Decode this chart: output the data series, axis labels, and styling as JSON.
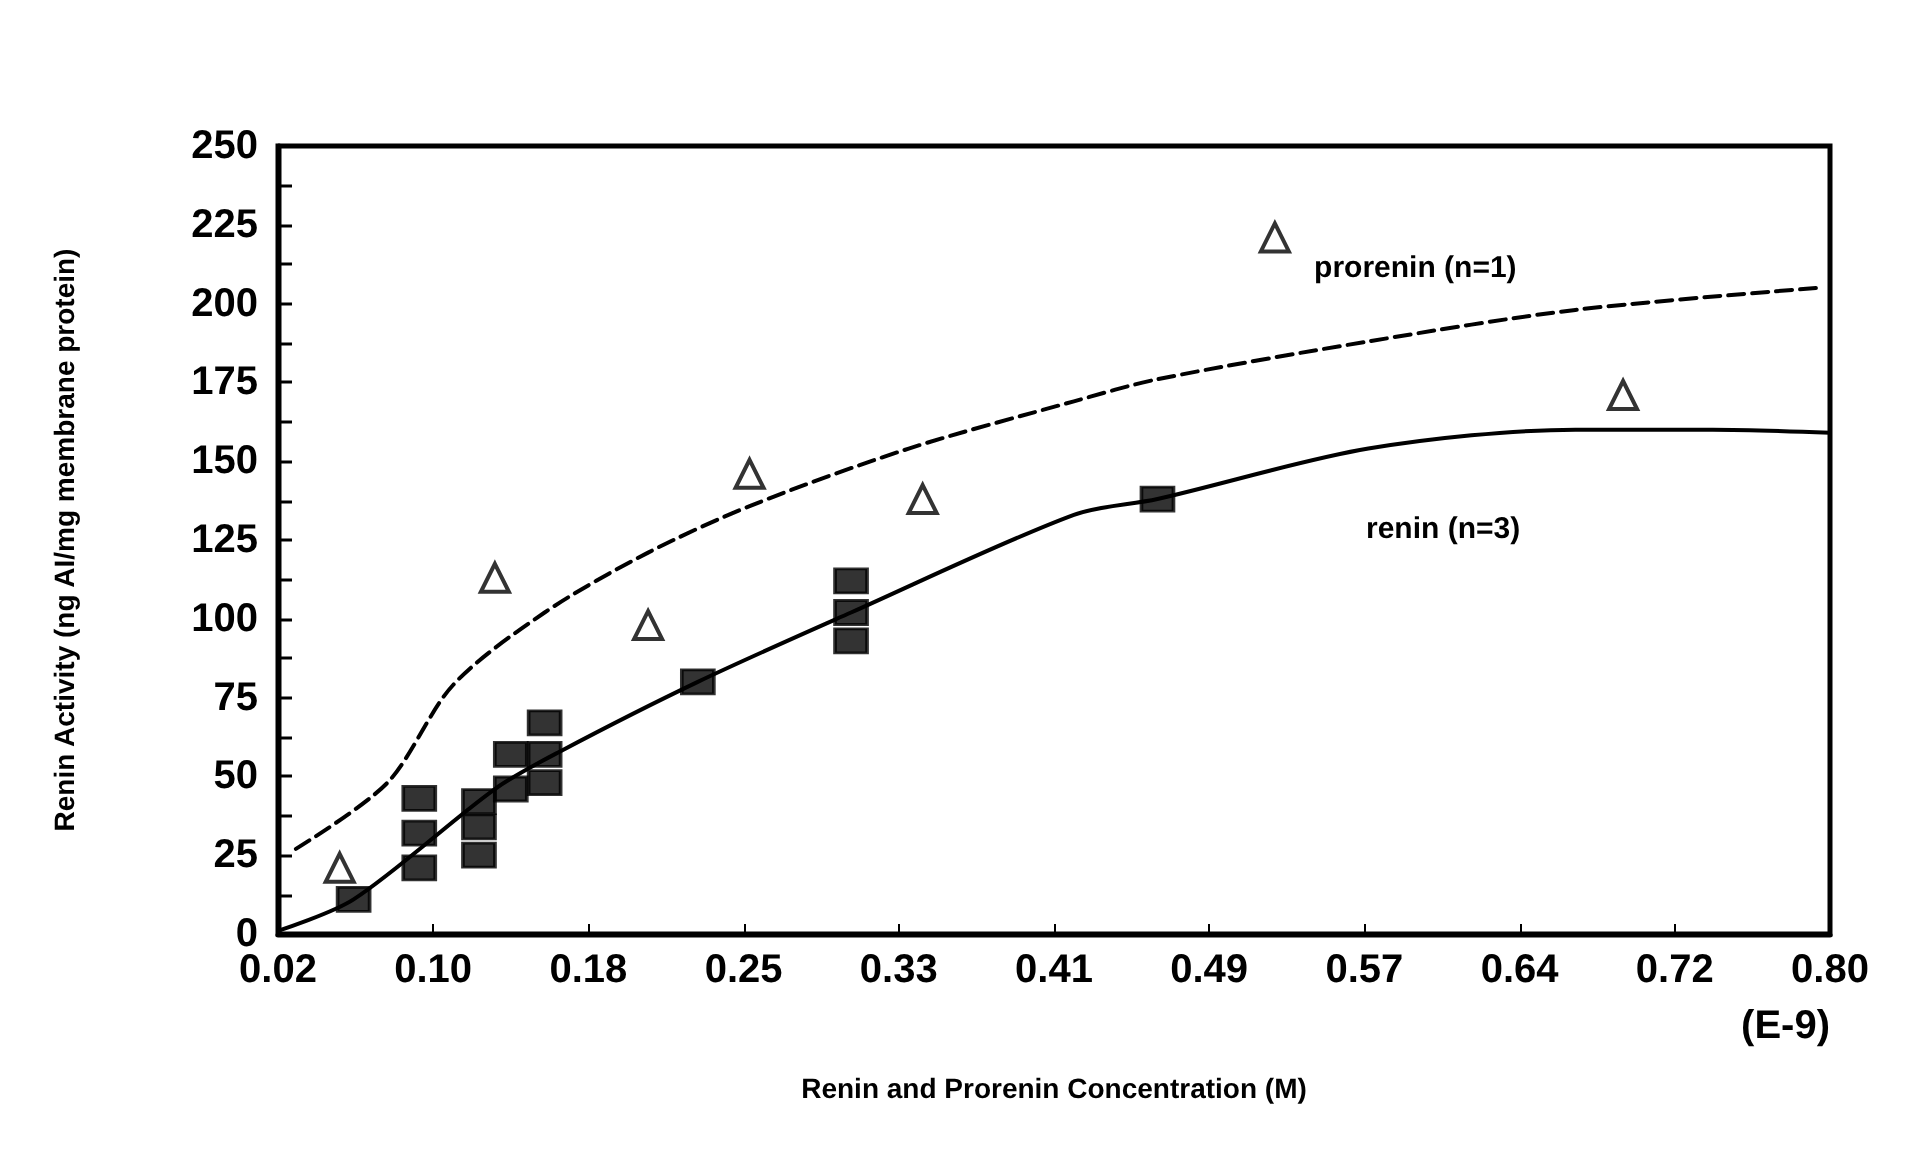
{
  "chart_data": {
    "type": "scatter",
    "xlabel": "Renin and Prorenin Concentration (M)",
    "ylabel": "Renin Activity (ng AI/mg membrane protein)",
    "xlim": [
      0.02,
      0.8
    ],
    "ylim": [
      0,
      250
    ],
    "xticks": [
      0.02,
      {
        "value": 0.098,
        "label": "0.10"
      },
      {
        "value": 0.176,
        "label": "0.18"
      },
      {
        "value": 0.254,
        "label": "0.25"
      },
      {
        "value": 0.332,
        "label": "0.33"
      },
      0.41,
      {
        "value": 0.488,
        "label": "0.49"
      },
      {
        "value": 0.566,
        "label": "0.57"
      },
      {
        "value": 0.644,
        "label": "0.64"
      },
      {
        "value": 0.722,
        "label": "0.72"
      },
      {
        "value": 0.8,
        "label": "0.80"
      }
    ],
    "yticks": [
      0,
      {
        "value": 12.5,
        "label": null
      },
      25,
      {
        "value": 37.5,
        "label": null
      },
      50,
      {
        "value": 62.5,
        "label": null
      },
      75,
      {
        "value": 87.5,
        "label": null
      },
      100,
      {
        "value": 112.5,
        "label": null
      },
      125,
      {
        "value": 137.5,
        "label": null
      },
      150,
      {
        "value": 162.5,
        "label": null
      },
      175,
      {
        "value": 187.5,
        "label": null
      },
      200,
      {
        "value": 212.5,
        "label": null
      },
      225,
      {
        "value": 237.5,
        "label": null
      },
      250
    ],
    "grid": false,
    "legend": false,
    "series": [
      {
        "marker": "triangle",
        "color": "#000000",
        "x": [
          0.051,
          0.129,
          0.206,
          0.257,
          0.344,
          0.521,
          0.696
        ],
        "values": [
          21,
          113,
          98,
          146,
          138,
          221,
          171
        ]
      },
      {
        "color": "#000000",
        "x": [
          0.058,
          0.091,
          0.091,
          0.091,
          0.121,
          0.121,
          0.121,
          0.137,
          0.137,
          0.154,
          0.154,
          0.154,
          0.231,
          0.308,
          0.308,
          0.308,
          0.462
        ],
        "values": [
          11,
          43,
          32,
          21,
          42,
          34,
          25,
          57,
          46,
          67,
          57,
          48,
          80,
          112,
          102,
          93,
          138
        ]
      },
      {
        "type": "line",
        "name": "prorenin (n=1)",
        "line_style": "dashed",
        "marker": "none",
        "color": "#000000",
        "x": [
          0.029,
          0.075,
          0.108,
          0.154,
          0.206,
          0.258,
          0.337,
          0.42,
          0.462,
          0.568,
          0.672,
          0.794
        ],
        "values": [
          27,
          48,
          79,
          102,
          121,
          136,
          154,
          169,
          176,
          188,
          198,
          205
        ]
      },
      {
        "type": "line",
        "name": "renin (n=3)",
        "line_style": "solid",
        "marker": "none",
        "color": "#000000",
        "x": [
          0.02,
          0.058,
          0.129,
          0.162,
          0.231,
          0.308,
          0.42,
          0.462,
          0.568,
          0.672,
          0.741,
          0.8
        ],
        "values": [
          1,
          11,
          46,
          58,
          80,
          102,
          133,
          138,
          154,
          160,
          160,
          159
        ]
      }
    ],
    "annotations": [
      "(E-9)"
    ]
  }
}
